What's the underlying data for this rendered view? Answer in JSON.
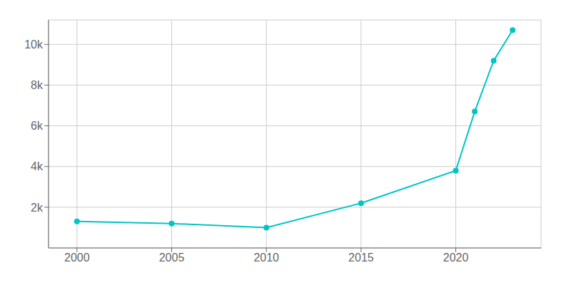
{
  "chart_data": {
    "type": "line",
    "x": [
      2000,
      2005,
      2010,
      2015,
      2020,
      2021,
      2022,
      2023
    ],
    "values": [
      1300,
      1200,
      1000,
      2200,
      3800,
      6700,
      9200,
      10700
    ],
    "color": "#00C5C5",
    "marker": "circle",
    "xlim": [
      1998.5,
      2024.5
    ],
    "ylim": [
      0,
      11200
    ],
    "xticks": [
      2000,
      2005,
      2010,
      2015,
      2020
    ],
    "yticks": [
      {
        "value": 2000,
        "label": "2k"
      },
      {
        "value": 4000,
        "label": "4k"
      },
      {
        "value": 6000,
        "label": "6k"
      },
      {
        "value": 8000,
        "label": "8k"
      },
      {
        "value": 10000,
        "label": "10k"
      }
    ],
    "grid": true
  }
}
